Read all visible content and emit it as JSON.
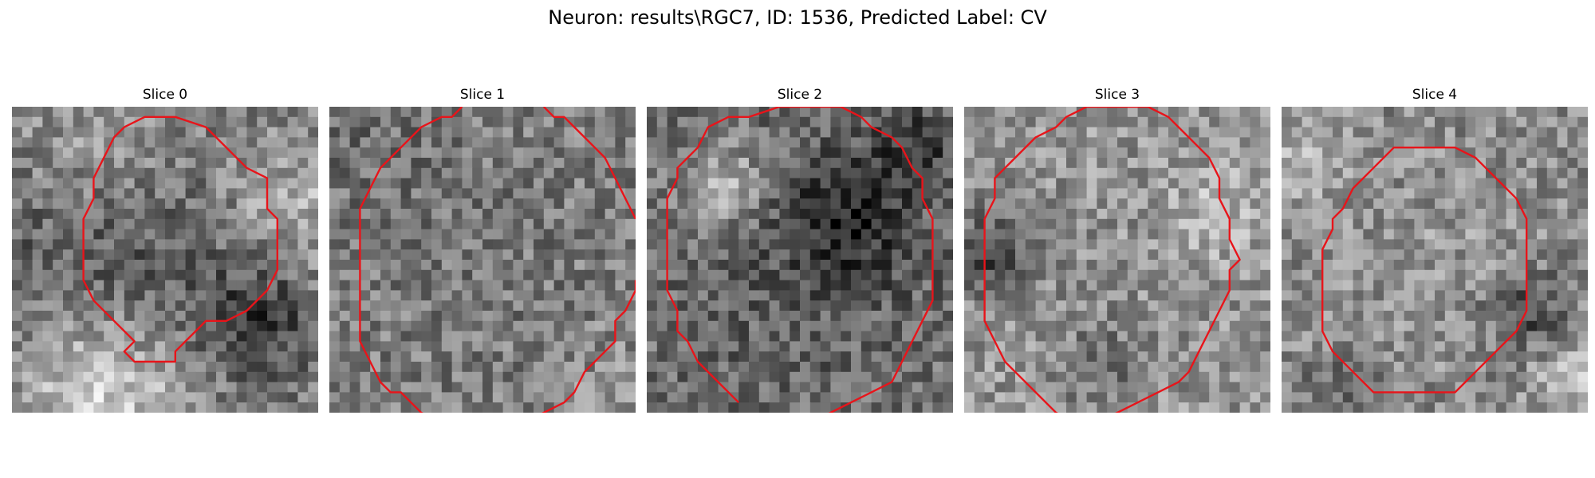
{
  "figure": {
    "title": "Neuron: results\\RGC7, ID: 1536, Predicted Label: CV",
    "contour_color": "#e8141a",
    "grid_size": 30
  },
  "panels": [
    {
      "title": "Slice 0",
      "texture": {
        "seed": 11,
        "base": 128,
        "blobs": [
          [
            15,
            16,
            8,
            -40
          ],
          [
            9,
            28,
            6,
            85
          ],
          [
            27,
            10,
            5,
            55
          ],
          [
            2,
            14,
            5,
            -25
          ],
          [
            24,
            20,
            4,
            -60
          ],
          [
            8,
            3,
            5,
            30
          ]
        ]
      },
      "contour": [
        [
          11,
          2
        ],
        [
          13,
          1
        ],
        [
          16,
          1
        ],
        [
          19,
          2
        ],
        [
          21,
          4
        ],
        [
          23,
          6
        ],
        [
          25,
          7
        ],
        [
          25,
          10
        ],
        [
          26,
          11
        ],
        [
          26,
          16
        ],
        [
          25,
          18
        ],
        [
          23,
          20
        ],
        [
          21,
          21
        ],
        [
          19,
          21
        ],
        [
          18,
          22
        ],
        [
          17,
          23
        ],
        [
          16,
          24
        ],
        [
          16,
          25
        ],
        [
          14,
          25
        ],
        [
          12,
          25
        ],
        [
          11,
          24
        ],
        [
          12,
          23
        ],
        [
          10,
          21
        ],
        [
          8,
          19
        ],
        [
          7,
          17
        ],
        [
          7,
          15
        ],
        [
          7,
          13
        ],
        [
          7,
          11
        ],
        [
          8,
          9
        ],
        [
          8,
          7
        ],
        [
          9,
          5
        ],
        [
          10,
          3
        ],
        [
          11,
          2
        ]
      ],
      "closed": true
    },
    {
      "title": "Slice 1",
      "texture": {
        "seed": 23,
        "base": 150,
        "blobs": [
          [
            15,
            15,
            12,
            35
          ],
          [
            15,
            15,
            15,
            -65
          ],
          [
            2,
            2,
            6,
            -20
          ],
          [
            28,
            28,
            5,
            20
          ]
        ]
      },
      "contour": [
        [
          13,
          0
        ],
        [
          12,
          1
        ],
        [
          11,
          1
        ],
        [
          9,
          2
        ],
        [
          7,
          4
        ],
        [
          6,
          5
        ],
        [
          5,
          6
        ],
        [
          4,
          8
        ],
        [
          3,
          10
        ],
        [
          3,
          13
        ],
        [
          3,
          15
        ],
        [
          3,
          17
        ],
        [
          3,
          19
        ],
        [
          3,
          21
        ],
        [
          3,
          23
        ],
        [
          4,
          25
        ],
        [
          5,
          27
        ],
        [
          6,
          28
        ],
        [
          7,
          28
        ],
        [
          9,
          30
        ],
        [
          11,
          31
        ],
        [
          13,
          31
        ],
        [
          15,
          31
        ],
        [
          17,
          31
        ],
        [
          19,
          31
        ],
        [
          21,
          30
        ],
        [
          23,
          29
        ],
        [
          24,
          28
        ],
        [
          25,
          26
        ],
        [
          26,
          25
        ],
        [
          27,
          24
        ],
        [
          28,
          23
        ],
        [
          28,
          21
        ],
        [
          29,
          20
        ],
        [
          30,
          18
        ],
        [
          30,
          17
        ]
      ],
      "contour2": [
        [
          21,
          0
        ],
        [
          22,
          1
        ],
        [
          23,
          1
        ],
        [
          24,
          2
        ],
        [
          25,
          3
        ],
        [
          26,
          4
        ],
        [
          27,
          5
        ],
        [
          28,
          7
        ],
        [
          29,
          9
        ],
        [
          30,
          11
        ]
      ],
      "closed": false
    },
    {
      "title": "Slice 2",
      "texture": {
        "seed": 37,
        "base": 135,
        "blobs": [
          [
            15,
            15,
            11,
            15
          ],
          [
            15,
            15,
            15,
            -55
          ],
          [
            19,
            11,
            4,
            -70
          ],
          [
            7,
            7,
            3,
            70
          ],
          [
            26,
            3,
            3,
            -60
          ]
        ]
      },
      "contour": [
        [
          9,
          29
        ],
        [
          7,
          27
        ],
        [
          5,
          25
        ],
        [
          4,
          23
        ],
        [
          3,
          22
        ],
        [
          3,
          20
        ],
        [
          2,
          18
        ],
        [
          2,
          16
        ],
        [
          2,
          14
        ],
        [
          2,
          12
        ],
        [
          2,
          10
        ],
        [
          2,
          9
        ],
        [
          3,
          7
        ],
        [
          3,
          6
        ],
        [
          4,
          5
        ],
        [
          5,
          4
        ],
        [
          6,
          2
        ],
        [
          8,
          1
        ],
        [
          10,
          1
        ],
        [
          13,
          0
        ],
        [
          16,
          0
        ],
        [
          19,
          0
        ],
        [
          21,
          1
        ],
        [
          22,
          2
        ],
        [
          24,
          3
        ],
        [
          25,
          4
        ],
        [
          26,
          6
        ],
        [
          27,
          7
        ],
        [
          27,
          9
        ],
        [
          28,
          11
        ],
        [
          28,
          13
        ],
        [
          28,
          15
        ],
        [
          28,
          17
        ],
        [
          28,
          19
        ],
        [
          27,
          21
        ],
        [
          26,
          23
        ],
        [
          25,
          25
        ],
        [
          24,
          27
        ],
        [
          22,
          28
        ],
        [
          20,
          29
        ],
        [
          18,
          30
        ],
        [
          16,
          31
        ],
        [
          15,
          31
        ]
      ],
      "closed": false
    },
    {
      "title": "Slice 3",
      "texture": {
        "seed": 53,
        "base": 165,
        "blobs": [
          [
            15,
            15,
            13,
            20
          ],
          [
            15,
            15,
            16,
            -40
          ],
          [
            2,
            14,
            3,
            -80
          ],
          [
            24,
            10,
            3,
            40
          ],
          [
            13,
            25,
            3,
            -40
          ]
        ]
      },
      "contour": [
        [
          11,
          31
        ],
        [
          9,
          30
        ],
        [
          7,
          28
        ],
        [
          5,
          26
        ],
        [
          4,
          25
        ],
        [
          3,
          23
        ],
        [
          2,
          21
        ],
        [
          2,
          19
        ],
        [
          2,
          17
        ],
        [
          2,
          15
        ],
        [
          2,
          13
        ],
        [
          2,
          11
        ],
        [
          3,
          9
        ],
        [
          3,
          7
        ],
        [
          4,
          6
        ],
        [
          5,
          5
        ],
        [
          7,
          3
        ],
        [
          9,
          2
        ],
        [
          10,
          1
        ],
        [
          12,
          0
        ],
        [
          14,
          0
        ],
        [
          16,
          0
        ],
        [
          18,
          0
        ],
        [
          20,
          1
        ],
        [
          21,
          2
        ],
        [
          22,
          3
        ],
        [
          23,
          4
        ],
        [
          24,
          5
        ],
        [
          25,
          7
        ],
        [
          25,
          9
        ],
        [
          26,
          11
        ],
        [
          26,
          13
        ],
        [
          27,
          15
        ],
        [
          26,
          16
        ],
        [
          26,
          18
        ],
        [
          25,
          20
        ],
        [
          24,
          22
        ],
        [
          23,
          24
        ],
        [
          22,
          26
        ],
        [
          21,
          27
        ],
        [
          19,
          28
        ],
        [
          17,
          29
        ],
        [
          15,
          30
        ],
        [
          13,
          31
        ],
        [
          12,
          31
        ]
      ],
      "closed": false
    },
    {
      "title": "Slice 4",
      "texture": {
        "seed": 71,
        "base": 135,
        "blobs": [
          [
            15,
            15,
            9,
            15
          ],
          [
            24,
            20,
            3,
            -70
          ],
          [
            2,
            4,
            3,
            50
          ],
          [
            28,
            25,
            3,
            55
          ],
          [
            5,
            28,
            3,
            -30
          ]
        ]
      },
      "contour": [
        [
          8,
          27
        ],
        [
          7,
          26
        ],
        [
          5,
          24
        ],
        [
          4,
          22
        ],
        [
          4,
          21
        ],
        [
          4,
          19
        ],
        [
          4,
          17
        ],
        [
          4,
          15
        ],
        [
          4,
          14
        ],
        [
          5,
          12
        ],
        [
          5,
          11
        ],
        [
          6,
          10
        ],
        [
          7,
          8
        ],
        [
          8,
          7
        ],
        [
          9,
          6
        ],
        [
          10,
          5
        ],
        [
          11,
          4
        ],
        [
          13,
          4
        ],
        [
          15,
          4
        ],
        [
          17,
          4
        ],
        [
          19,
          5
        ],
        [
          20,
          6
        ],
        [
          21,
          7
        ],
        [
          22,
          8
        ],
        [
          23,
          9
        ],
        [
          24,
          11
        ],
        [
          24,
          13
        ],
        [
          24,
          14
        ],
        [
          24,
          16
        ],
        [
          24,
          18
        ],
        [
          24,
          20
        ],
        [
          23,
          22
        ],
        [
          22,
          23
        ],
        [
          21,
          24
        ],
        [
          20,
          25
        ],
        [
          19,
          26
        ],
        [
          18,
          27
        ],
        [
          17,
          28
        ],
        [
          15,
          28
        ],
        [
          13,
          28
        ],
        [
          11,
          28
        ],
        [
          9,
          28
        ],
        [
          8,
          27
        ]
      ],
      "closed": true
    }
  ]
}
